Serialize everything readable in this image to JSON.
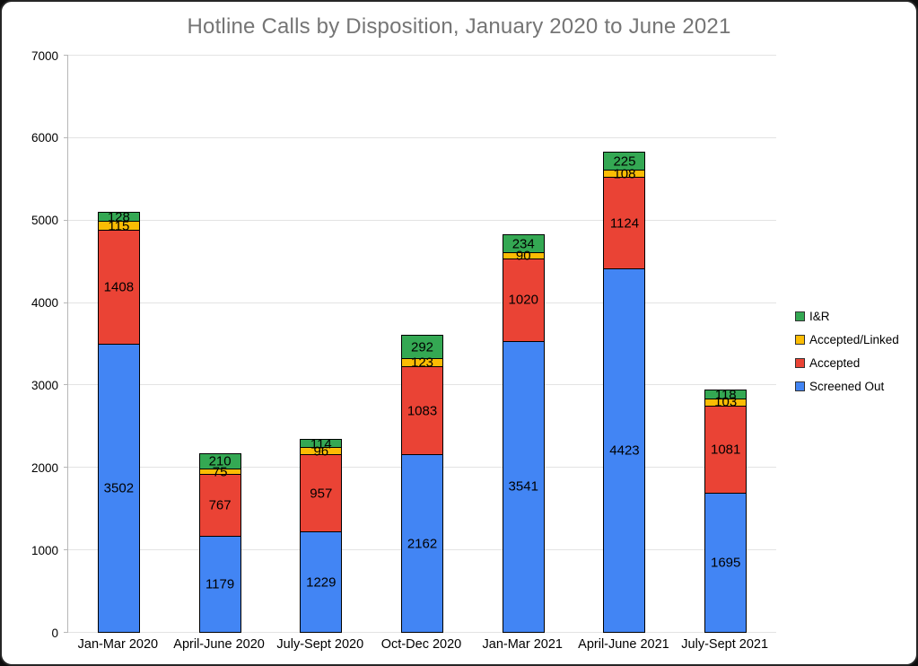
{
  "title": "Hotline Calls by Disposition, January 2020 to June 2021",
  "colors": {
    "screened_out": "#4285F4",
    "accepted": "#EA4335",
    "accepted_linked": "#FBBC04",
    "i_and_r": "#34A853",
    "title_text": "#757575",
    "gridline": "#e3e3e3"
  },
  "chart_data": {
    "type": "bar",
    "stacked": true,
    "title": "Hotline Calls by Disposition, January 2020 to June 2021",
    "categories": [
      "Jan-Mar 2020",
      "April-June 2020",
      "July-Sept 2020",
      "Oct-Dec 2020",
      "Jan-Mar 2021",
      "April-June 2021",
      "July-Sept 2021"
    ],
    "series": [
      {
        "name": "Screened Out",
        "color": "#4285F4",
        "values": [
          3502,
          1179,
          1229,
          2162,
          3541,
          4423,
          1695
        ]
      },
      {
        "name": "Accepted",
        "color": "#EA4335",
        "values": [
          1408,
          767,
          957,
          1083,
          1020,
          1124,
          1081
        ]
      },
      {
        "name": "Accepted/Linked",
        "color": "#FBBC04",
        "values": [
          115,
          75,
          96,
          123,
          90,
          108,
          103
        ]
      },
      {
        "name": "I&R",
        "color": "#34A853",
        "values": [
          128,
          210,
          114,
          292,
          234,
          225,
          118
        ]
      }
    ],
    "xlabel": "",
    "ylabel": "",
    "ylim": [
      0,
      7000
    ],
    "yticks": [
      0,
      1000,
      2000,
      3000,
      4000,
      5000,
      6000,
      7000
    ],
    "grid": true,
    "legend": {
      "position": "right",
      "entries": [
        "I&R",
        "Accepted/Linked",
        "Accepted",
        "Screened Out"
      ]
    }
  }
}
